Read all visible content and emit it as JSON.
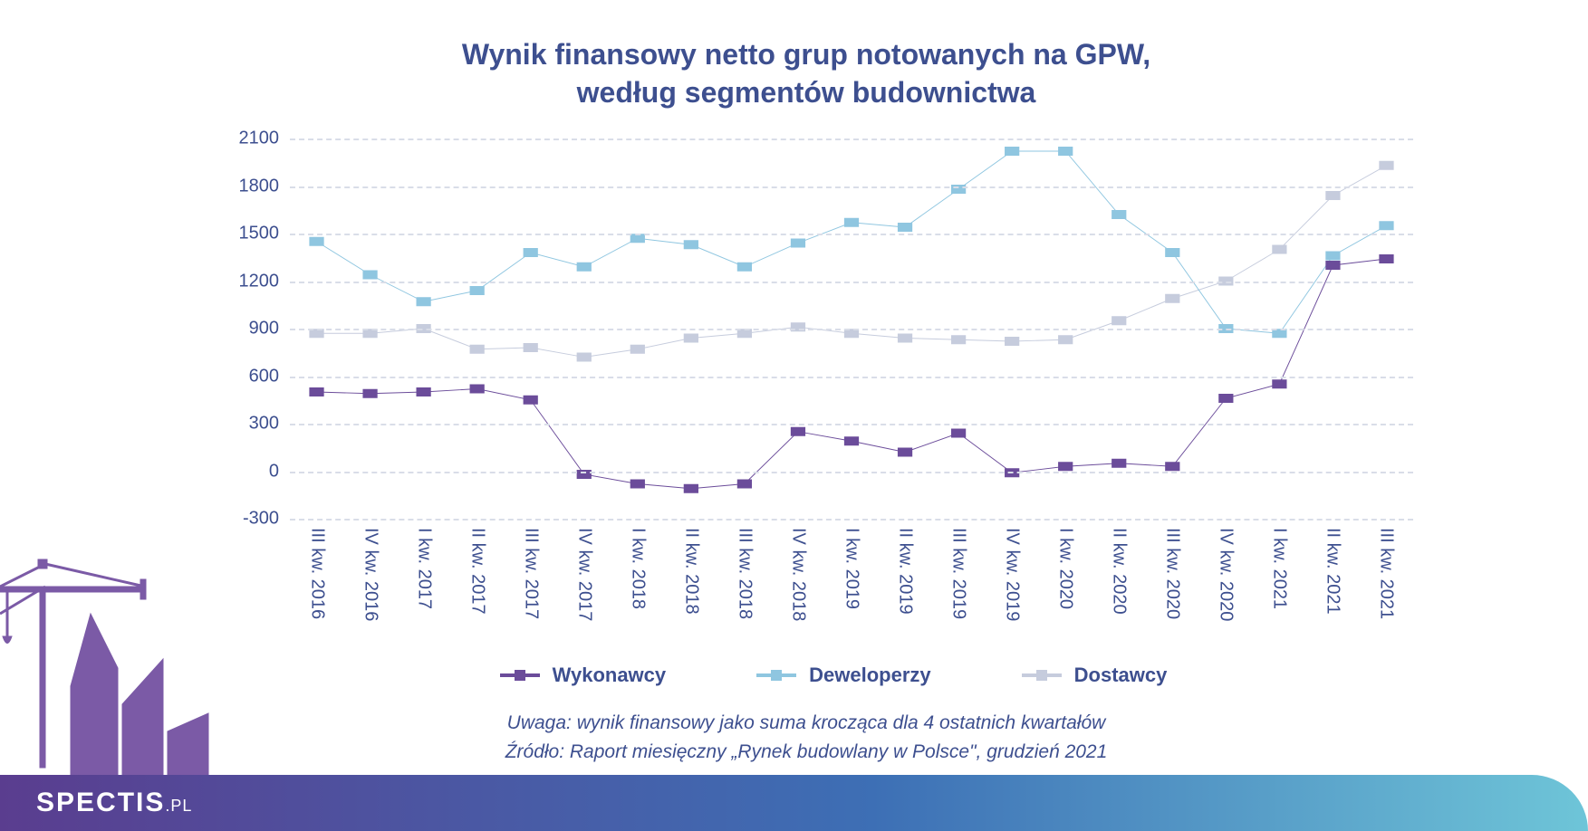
{
  "title_line1": "Wynik finansowy netto grup notowanych na GPW,",
  "title_line2": "według segmentów budownictwa",
  "title_color": "#3d4f8f",
  "title_fontsize": 32,
  "chart": {
    "type": "line",
    "background_color": "#ffffff",
    "grid_color": "#d9dde8",
    "grid_dash": "6,6",
    "axis_label_color": "#3d4f8f",
    "axis_fontsize": 20,
    "ylim_min": -300,
    "ylim_max": 2100,
    "ytick_step": 300,
    "yticks": [
      2100,
      1800,
      1500,
      1200,
      900,
      600,
      300,
      0,
      -300
    ],
    "categories": [
      "III kw. 2016",
      "IV kw. 2016",
      "I kw. 2017",
      "II kw. 2017",
      "III kw. 2017",
      "IV kw. 2017",
      "I kw. 2018",
      "II kw. 2018",
      "III kw. 2018",
      "IV kw. 2018",
      "I kw. 2019",
      "II kw. 2019",
      "III kw. 2019",
      "IV kw. 2019",
      "I kw. 2020",
      "II kw. 2020",
      "III kw. 2020",
      "IV kw. 2020",
      "I kw. 2021",
      "II kw. 2021",
      "III kw. 2021"
    ],
    "series": [
      {
        "name": "Wykonawcy",
        "color": "#6b4c9a",
        "line_width": 4,
        "marker": "square",
        "marker_size": 10,
        "values": [
          500,
          490,
          500,
          520,
          450,
          -20,
          -80,
          -110,
          -80,
          250,
          190,
          120,
          240,
          -10,
          30,
          50,
          30,
          460,
          550,
          1300,
          1340
        ]
      },
      {
        "name": "Deweloperzy",
        "color": "#8fc6e0",
        "line_width": 4,
        "marker": "square",
        "marker_size": 10,
        "values": [
          1450,
          1240,
          1070,
          1140,
          1380,
          1290,
          1470,
          1430,
          1290,
          1440,
          1570,
          1540,
          1780,
          2020,
          2020,
          1620,
          1380,
          900,
          870,
          1360,
          1550
        ]
      },
      {
        "name": "Dostawcy",
        "color": "#c6ccdd",
        "line_width": 4,
        "marker": "square",
        "marker_size": 10,
        "values": [
          870,
          870,
          900,
          770,
          780,
          720,
          770,
          840,
          870,
          910,
          870,
          840,
          830,
          820,
          830,
          950,
          1090,
          1200,
          1400,
          1740,
          1930
        ]
      }
    ]
  },
  "legend": {
    "fontsize": 22,
    "color": "#3d4f8f",
    "items": [
      {
        "label": "Wykonawcy",
        "color": "#6b4c9a"
      },
      {
        "label": "Deweloperzy",
        "color": "#8fc6e0"
      },
      {
        "label": "Dostawcy",
        "color": "#c6ccdd"
      }
    ]
  },
  "footnotes": {
    "line1": "Uwaga: wynik finansowy jako suma krocząca dla 4 ostatnich kwartałów",
    "line2": "Źródło: Raport miesięczny „Rynek budowlany w Polsce\", grudzień 2021",
    "color": "#3d4f8f",
    "fontsize": 21
  },
  "footer": {
    "gradient_from": "#5a3d8f",
    "gradient_mid": "#3d6fb5",
    "gradient_to": "#6ec5d8",
    "logo_main": "SPECTIS",
    "logo_tld": ".PL",
    "logo_fontsize": 30,
    "logo_tld_fontsize": 18
  },
  "silhouette_color": "#7b5aa6"
}
